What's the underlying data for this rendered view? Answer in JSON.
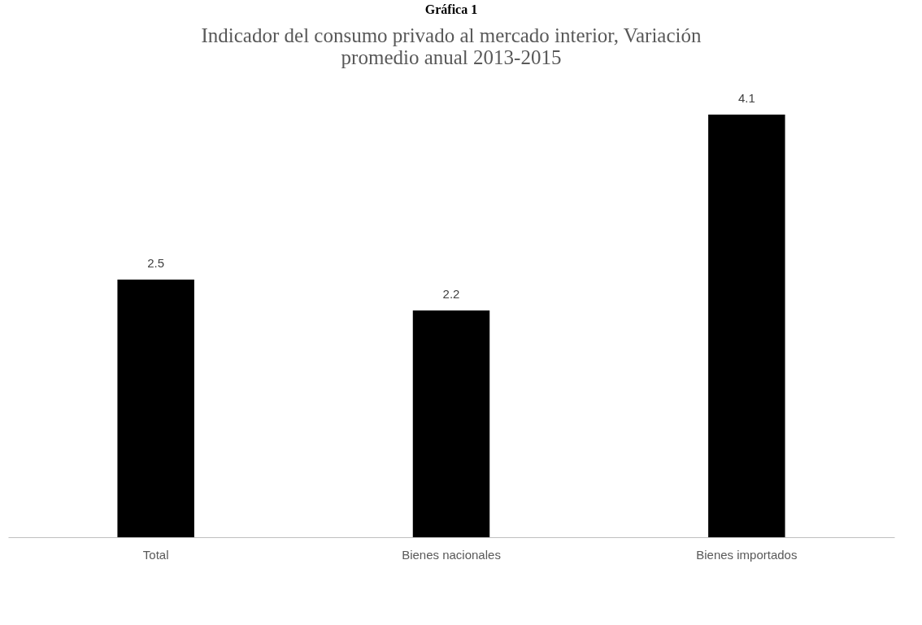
{
  "chart_data": {
    "type": "bar",
    "title": "Gráfica 1",
    "subtitle": "Indicador del consumo privado al mercado interior, Variación promedio anual 2013-2015",
    "categories": [
      "Total",
      "Bienes nacionales",
      "Bienes importados"
    ],
    "values": [
      2.5,
      2.2,
      4.1
    ],
    "color": "#000000",
    "data_labels": true,
    "grid": false
  }
}
